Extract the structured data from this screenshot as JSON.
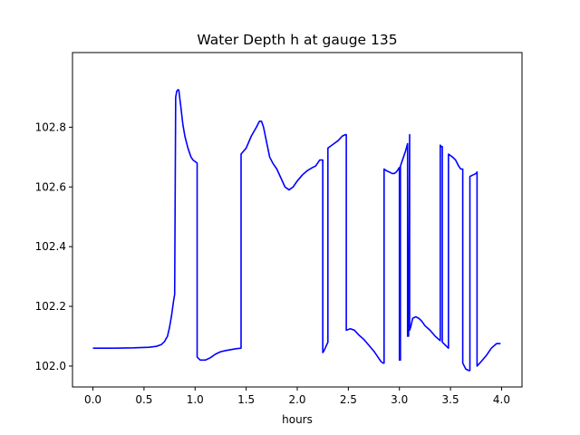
{
  "chart_data": {
    "type": "line",
    "title": "Water Depth h at gauge 135",
    "xlabel": "hours",
    "ylabel": "",
    "xlim": [
      -0.2,
      4.2
    ],
    "ylim": [
      101.93,
      103.05
    ],
    "xticks": [
      0.0,
      0.5,
      1.0,
      1.5,
      2.0,
      2.5,
      3.0,
      3.5,
      4.0
    ],
    "xtick_labels": [
      "0.0",
      "0.5",
      "1.0",
      "1.5",
      "2.0",
      "2.5",
      "3.0",
      "3.5",
      "4.0"
    ],
    "yticks": [
      102.0,
      102.2,
      102.4,
      102.6,
      102.8
    ],
    "ytick_labels": [
      "102.0",
      "102.2",
      "102.4",
      "102.6",
      "102.8"
    ],
    "grid": false,
    "line_color": "#0000ff",
    "series": [
      {
        "name": "",
        "x": [
          0.0,
          0.2,
          0.4,
          0.55,
          0.62,
          0.67,
          0.7,
          0.73,
          0.75,
          0.77,
          0.79,
          0.8,
          0.81,
          0.81,
          0.82,
          0.83,
          0.84,
          0.86,
          0.88,
          0.9,
          0.93,
          0.96,
          0.98,
          1.0,
          1.02,
          1.02,
          1.05,
          1.1,
          1.15,
          1.2,
          1.25,
          1.3,
          1.35,
          1.4,
          1.45,
          1.45,
          1.5,
          1.55,
          1.6,
          1.63,
          1.65,
          1.67,
          1.7,
          1.73,
          1.76,
          1.8,
          1.84,
          1.88,
          1.92,
          1.96,
          2.0,
          2.05,
          2.1,
          2.15,
          2.18,
          2.2,
          2.22,
          2.25,
          2.25,
          2.26,
          2.3,
          2.3,
          2.32,
          2.36,
          2.4,
          2.44,
          2.47,
          2.48,
          2.48,
          2.52,
          2.56,
          2.6,
          2.65,
          2.7,
          2.75,
          2.79,
          2.82,
          2.84,
          2.85,
          2.85,
          2.87,
          2.9,
          2.93,
          2.95,
          2.97,
          2.99,
          3.0,
          3.0,
          3.01,
          3.01,
          3.04,
          3.06,
          3.08,
          3.08,
          3.09,
          3.1,
          3.1,
          3.11,
          3.13,
          3.16,
          3.19,
          3.22,
          3.25,
          3.3,
          3.35,
          3.4,
          3.4,
          3.41,
          3.42,
          3.42,
          3.45,
          3.48,
          3.48,
          3.52,
          3.55,
          3.58,
          3.6,
          3.62,
          3.62,
          3.65,
          3.68,
          3.69,
          3.69,
          3.72,
          3.75,
          3.76,
          3.76,
          3.8,
          3.85,
          3.9,
          3.95,
          3.99
        ],
        "y": [
          102.06,
          102.06,
          102.061,
          102.063,
          102.066,
          102.072,
          102.082,
          102.1,
          102.13,
          102.17,
          102.22,
          102.24,
          102.9,
          102.9,
          102.92,
          102.925,
          102.925,
          102.87,
          102.81,
          102.77,
          102.73,
          102.7,
          102.69,
          102.685,
          102.68,
          102.03,
          102.02,
          102.02,
          102.028,
          102.04,
          102.048,
          102.052,
          102.055,
          102.058,
          102.06,
          102.71,
          102.73,
          102.77,
          102.8,
          102.82,
          102.82,
          102.8,
          102.75,
          102.7,
          102.68,
          102.66,
          102.63,
          102.6,
          102.59,
          102.6,
          102.62,
          102.64,
          102.655,
          102.665,
          102.67,
          102.68,
          102.69,
          102.69,
          102.045,
          102.05,
          102.08,
          102.73,
          102.735,
          102.745,
          102.755,
          102.77,
          102.775,
          102.775,
          102.12,
          102.125,
          102.12,
          102.105,
          102.09,
          102.07,
          102.05,
          102.03,
          102.015,
          102.01,
          102.01,
          102.66,
          102.655,
          102.65,
          102.645,
          102.645,
          102.65,
          102.66,
          102.665,
          102.02,
          102.02,
          102.67,
          102.7,
          102.72,
          102.745,
          102.1,
          102.1,
          102.775,
          102.12,
          102.13,
          102.16,
          102.165,
          102.16,
          102.15,
          102.135,
          102.12,
          102.1,
          102.085,
          102.74,
          102.735,
          102.735,
          102.08,
          102.07,
          102.06,
          102.71,
          102.7,
          102.69,
          102.67,
          102.66,
          102.66,
          102.01,
          101.99,
          101.985,
          101.985,
          102.635,
          102.64,
          102.645,
          102.65,
          102.0,
          102.015,
          102.035,
          102.06,
          102.075,
          102.075
        ]
      }
    ]
  }
}
